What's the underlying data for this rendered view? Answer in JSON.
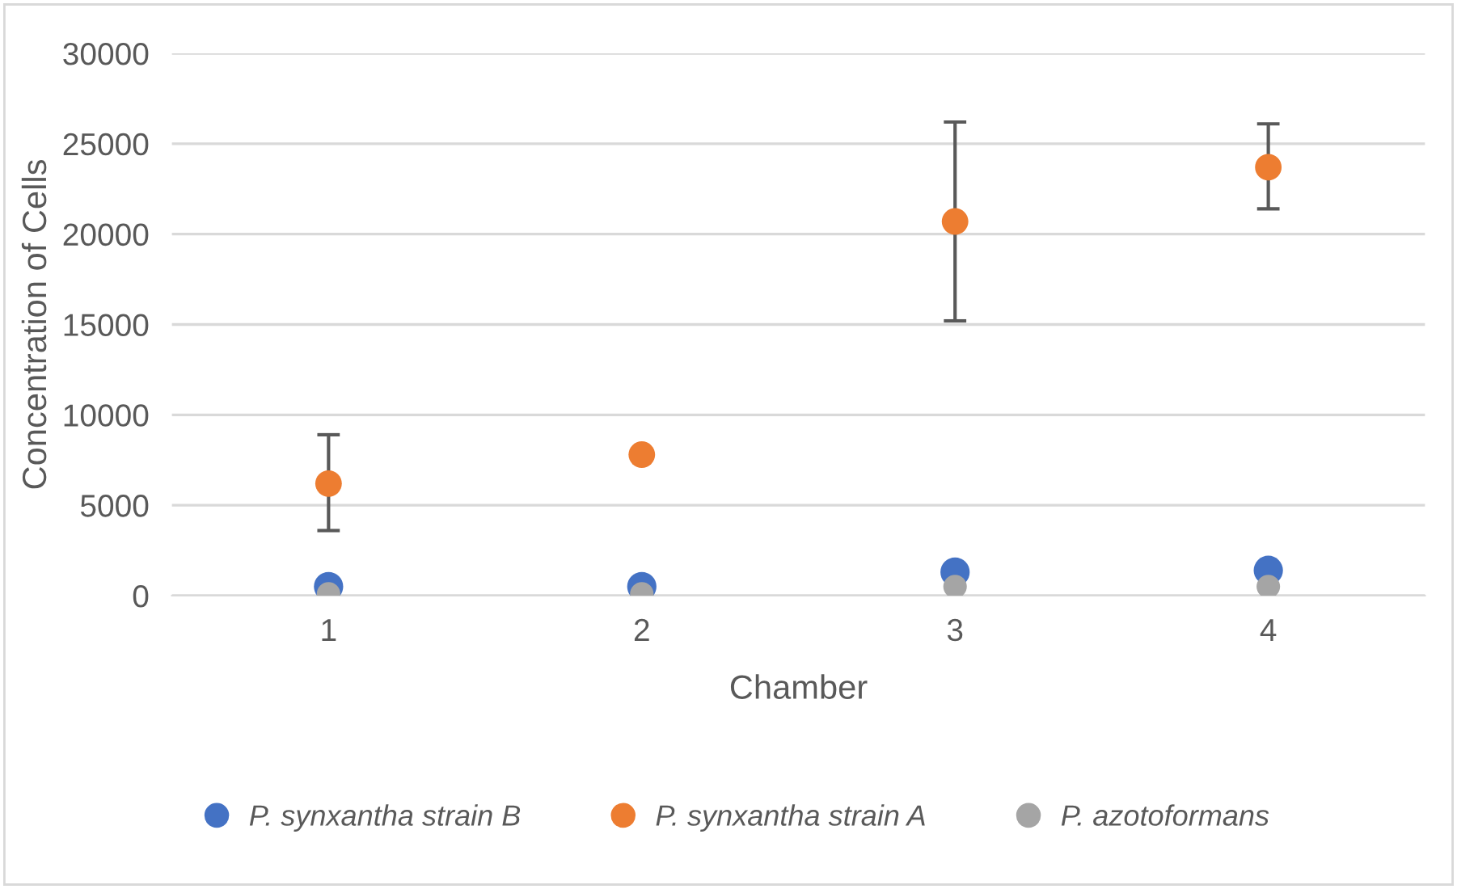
{
  "chart_data": {
    "type": "scatter",
    "xlabel": "Chamber",
    "ylabel": "Concentration of Cells",
    "categories": [
      "1",
      "2",
      "3",
      "4"
    ],
    "series": [
      {
        "name": "P. synxantha strain B",
        "color": "#4472c4",
        "values": [
          500,
          500,
          1300,
          1400
        ]
      },
      {
        "name": "P. synxantha strain A",
        "color": "#ed7d31",
        "values": [
          6200,
          7800,
          20700,
          23700
        ],
        "errors": [
          [
            3600,
            8900
          ],
          null,
          [
            15200,
            26200
          ],
          [
            21400,
            26100
          ]
        ]
      },
      {
        "name": "P. azotoformans",
        "color": "#a5a5a5",
        "values": [
          100,
          100,
          500,
          500
        ]
      }
    ],
    "ylim": [
      0,
      30000
    ],
    "yticks": [
      0,
      5000,
      10000,
      15000,
      20000,
      25000,
      30000
    ],
    "grid": "y",
    "legend": "bottom",
    "marker": "circle"
  }
}
